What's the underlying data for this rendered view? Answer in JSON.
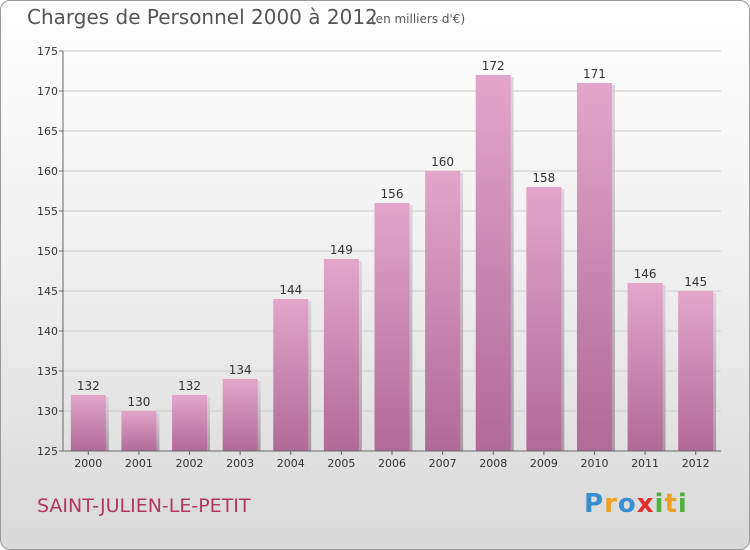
{
  "header": {
    "title": "Charges de Personnel 2000 à 2012",
    "subtitle": "(en milliers d'€)"
  },
  "footer": {
    "town": "SAINT-JULIEN-LE-PETIT",
    "logo": {
      "text": "Proxiti",
      "letters": [
        {
          "ch": "P",
          "color": "#3a8fd0"
        },
        {
          "ch": "r",
          "color": "#f0a020"
        },
        {
          "ch": "o",
          "color": "#3a8fd0"
        },
        {
          "ch": "x",
          "color": "#e03030"
        },
        {
          "ch": "i",
          "color": "#50b040"
        },
        {
          "ch": "t",
          "color": "#f0a020"
        },
        {
          "ch": "i",
          "color": "#50b040"
        }
      ]
    }
  },
  "chart_data": {
    "type": "bar",
    "title": "Charges de Personnel 2000 à 2012",
    "subtitle": "(en milliers d'€)",
    "categories": [
      "2000",
      "2001",
      "2002",
      "2003",
      "2004",
      "2005",
      "2006",
      "2007",
      "2008",
      "2009",
      "2010",
      "2011",
      "2012"
    ],
    "values": [
      132,
      130,
      132,
      134,
      144,
      149,
      156,
      160,
      172,
      158,
      171,
      146,
      145
    ],
    "ylim": [
      125,
      175
    ],
    "yticks": [
      125,
      130,
      135,
      140,
      145,
      150,
      155,
      160,
      165,
      170,
      175
    ],
    "grid": true,
    "colors": {
      "bar_top": "#e3a6c9",
      "bar_bottom": "#b06a96",
      "text": "#333333",
      "grid": "#cccccc"
    }
  }
}
